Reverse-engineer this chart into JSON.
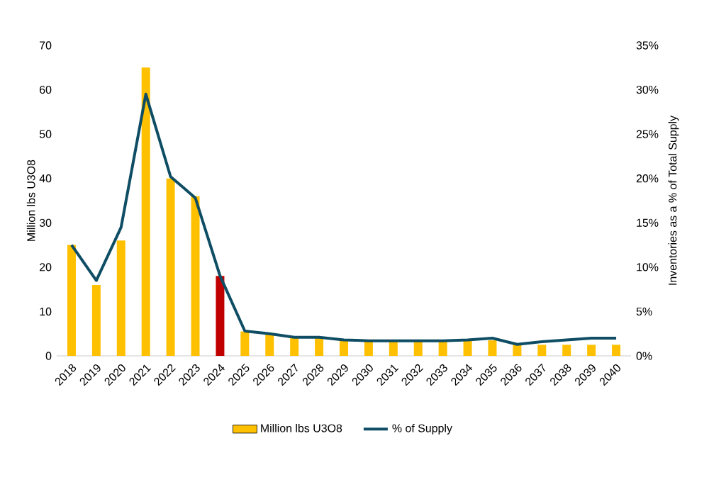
{
  "chart_data": {
    "type": "bar",
    "categories": [
      "2018",
      "2019",
      "2020",
      "2021",
      "2022",
      "2023",
      "2024",
      "2025",
      "2026",
      "2027",
      "2028",
      "2029",
      "2030",
      "2031",
      "2032",
      "2033",
      "2034",
      "2035",
      "2036",
      "2037",
      "2038",
      "2039",
      "2040"
    ],
    "ylabel": "Million lbs U3O8",
    "y2label": "Inventories  as a % of Total Supply",
    "ylim": [
      0,
      70
    ],
    "yticks": [
      0,
      10,
      20,
      30,
      40,
      50,
      60,
      70
    ],
    "y2lim": [
      0,
      35
    ],
    "y2ticks": [
      {
        "value": 0,
        "label": "0%"
      },
      {
        "value": 5,
        "label": "5%"
      },
      {
        "value": 10,
        "label": "10%"
      },
      {
        "value": 15,
        "label": "15%"
      },
      {
        "value": 20,
        "label": "20%"
      },
      {
        "value": 25,
        "label": "25%"
      },
      {
        "value": 30,
        "label": "30%"
      },
      {
        "value": 35,
        "label": "35%"
      }
    ],
    "legend": "bottom",
    "series": [
      {
        "name": "Million lbs U3O8",
        "color": "#ffc000",
        "colors": [
          "#ffc000",
          "#ffc000",
          "#ffc000",
          "#ffc000",
          "#ffc000",
          "#ffc000",
          "#c00000",
          "#ffc000",
          "#ffc000",
          "#ffc000",
          "#ffc000",
          "#ffc000",
          "#ffc000",
          "#ffc000",
          "#ffc000",
          "#ffc000",
          "#ffc000",
          "#ffc000",
          "#ffc000",
          "#ffc000",
          "#ffc000",
          "#ffc000",
          "#ffc000"
        ],
        "values": [
          25,
          16,
          26,
          65,
          40,
          36,
          18,
          5.5,
          4.8,
          4,
          4,
          3.5,
          3.3,
          3.3,
          3.3,
          3.3,
          3.5,
          3.5,
          2.5,
          2.5,
          2.5,
          2.5,
          2.5
        ]
      },
      {
        "name": "% of Supply",
        "type": "line",
        "axis": "y2",
        "color": "#0e4d64",
        "values": [
          12.5,
          8.5,
          14.5,
          29.5,
          20.2,
          17.8,
          9,
          2.8,
          2.5,
          2.1,
          2.1,
          1.8,
          1.7,
          1.7,
          1.7,
          1.7,
          1.8,
          2,
          1.3,
          1.6,
          1.8,
          2,
          2
        ]
      }
    ]
  }
}
